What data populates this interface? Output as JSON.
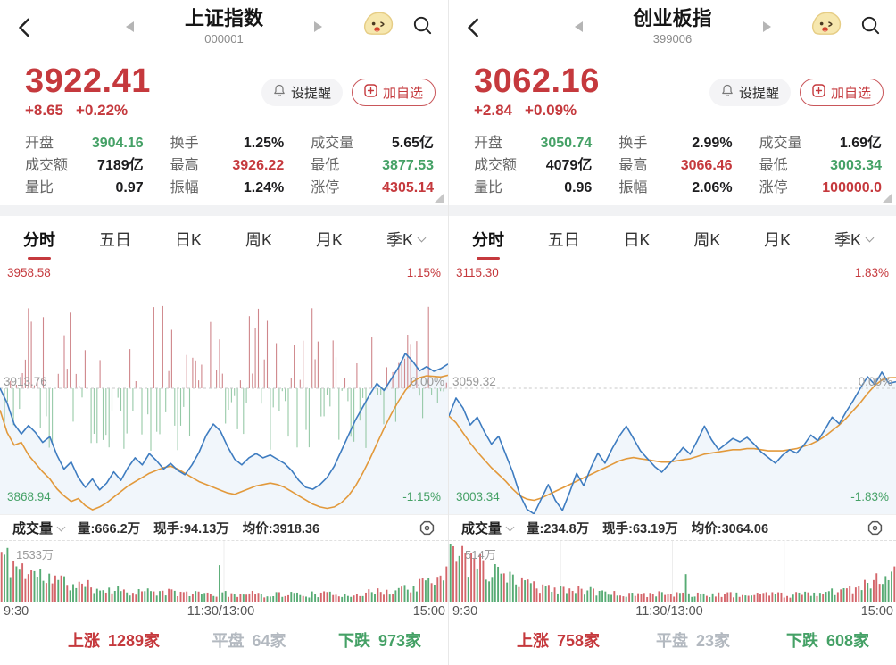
{
  "colors": {
    "red": "#c5393d",
    "green": "#45a166",
    "blue_line": "#3e7cc0",
    "orange_line": "#e2993b",
    "bar_red": "#cf868b",
    "bar_green": "#96c9a7",
    "vol_red": "#d4666b",
    "vol_green": "#57ab74",
    "gray_label": "#9a9a9a"
  },
  "tabs": [
    {
      "label": "分时",
      "active": true
    },
    {
      "label": "五日",
      "active": false
    },
    {
      "label": "日K",
      "active": false
    },
    {
      "label": "周K",
      "active": false
    },
    {
      "label": "月K",
      "active": false
    },
    {
      "label": "季K",
      "active": false,
      "caret": true
    }
  ],
  "panels": [
    {
      "header": {
        "title": "上证指数",
        "code": "000001"
      },
      "price": {
        "value": "3922.41",
        "change": "+8.65",
        "change_pct": "+0.22%"
      },
      "actions": {
        "alert_label": "设提醒",
        "watchlist_label": "加自选"
      },
      "stats": [
        {
          "label": "开盘",
          "value": "3904.16",
          "color": "green"
        },
        {
          "label": "换手",
          "value": "1.25%",
          "color": "dark"
        },
        {
          "label": "成交量",
          "value": "5.65亿",
          "color": "dark"
        },
        {
          "label": "成交额",
          "value": "7189亿",
          "color": "dark"
        },
        {
          "label": "最高",
          "value": "3926.22",
          "color": "red"
        },
        {
          "label": "最低",
          "value": "3877.53",
          "color": "green"
        },
        {
          "label": "量比",
          "value": "0.97",
          "color": "dark"
        },
        {
          "label": "振幅",
          "value": "1.24%",
          "color": "dark"
        },
        {
          "label": "涨停",
          "value": "4305.14",
          "color": "red"
        }
      ],
      "chart_labels": {
        "high": "3958.58",
        "high_pct": "1.15%",
        "mid": "3913.76",
        "mid_pct": "0.00%",
        "low": "3868.94",
        "low_pct": "-1.15%"
      },
      "volume_header": {
        "title": "成交量",
        "metrics": [
          "量:666.2万",
          "现手:94.13万",
          "均价:3918.36"
        ]
      },
      "volume_max_label": "1533万",
      "x_axis": [
        "9:30",
        "11:30/13:00",
        "15:00"
      ],
      "breadth": [
        {
          "label": "上涨",
          "value": "1289家",
          "color": "red"
        },
        {
          "label": "平盘",
          "value": "64家",
          "color": "gray"
        },
        {
          "label": "下跌",
          "value": "973家",
          "color": "green"
        }
      ]
    },
    {
      "header": {
        "title": "创业板指",
        "code": "399006"
      },
      "price": {
        "value": "3062.16",
        "change": "+2.84",
        "change_pct": "+0.09%"
      },
      "actions": {
        "alert_label": "设提醒",
        "watchlist_label": "加自选"
      },
      "stats": [
        {
          "label": "开盘",
          "value": "3050.74",
          "color": "green"
        },
        {
          "label": "换手",
          "value": "2.99%",
          "color": "dark"
        },
        {
          "label": "成交量",
          "value": "1.69亿",
          "color": "dark"
        },
        {
          "label": "成交额",
          "value": "4079亿",
          "color": "dark"
        },
        {
          "label": "最高",
          "value": "3066.46",
          "color": "red"
        },
        {
          "label": "最低",
          "value": "3003.34",
          "color": "green"
        },
        {
          "label": "量比",
          "value": "0.96",
          "color": "dark"
        },
        {
          "label": "振幅",
          "value": "2.06%",
          "color": "dark"
        },
        {
          "label": "涨停",
          "value": "100000.0",
          "color": "red"
        }
      ],
      "chart_labels": {
        "high": "3115.30",
        "high_pct": "1.83%",
        "mid": "3059.32",
        "mid_pct": "0.00%",
        "low": "3003.34",
        "low_pct": "-1.83%"
      },
      "volume_header": {
        "title": "成交量",
        "metrics": [
          "量:234.8万",
          "现手:63.19万",
          "均价:3064.06"
        ]
      },
      "volume_max_label": "514万",
      "x_axis": [
        "9:30",
        "11:30/13:00",
        "15:00"
      ],
      "breadth": [
        {
          "label": "上涨",
          "value": "758家",
          "color": "red"
        },
        {
          "label": "平盘",
          "value": "23家",
          "color": "gray"
        },
        {
          "label": "下跌",
          "value": "608家",
          "color": "green"
        }
      ]
    }
  ],
  "chart_data": [
    {
      "type": "line",
      "title": "上证指数 分时",
      "x_axis": [
        "9:30",
        "11:30/13:00",
        "15:00"
      ],
      "y_top": 3958.58,
      "y_bottom": 3868.94,
      "prev_close": 3913.76,
      "close": 3922.41,
      "day_high": 3926.22,
      "day_low": 3877.53,
      "series": [
        {
          "name": "price",
          "color_key": "blue_line",
          "values": [
            3913.8,
            3908.5,
            3901.0,
            3897.5,
            3900.5,
            3898.0,
            3894.5,
            3896.5,
            3890.0,
            3885.0,
            3887.5,
            3882.0,
            3878.5,
            3881.5,
            3877.6,
            3880.0,
            3884.0,
            3881.0,
            3885.5,
            3889.0,
            3886.5,
            3890.5,
            3888.0,
            3885.0,
            3887.0,
            3884.5,
            3883.0,
            3886.5,
            3891.0,
            3897.0,
            3901.0,
            3898.5,
            3893.0,
            3888.5,
            3886.5,
            3889.0,
            3890.5,
            3889.0,
            3890.0,
            3888.5,
            3887.0,
            3884.5,
            3881.0,
            3878.5,
            3877.8,
            3879.5,
            3882.0,
            3886.0,
            3891.5,
            3897.0,
            3902.5,
            3907.0,
            3911.5,
            3915.5,
            3913.0,
            3917.0,
            3921.0,
            3926.2,
            3923.5,
            3920.0,
            3921.5,
            3919.8,
            3920.8,
            3922.4
          ]
        },
        {
          "name": "avg",
          "color_key": "orange_line",
          "values": [
            3906.0,
            3898.0,
            3893.5,
            3894.5,
            3890.0,
            3887.0,
            3884.0,
            3881.5,
            3878.0,
            3875.5,
            3873.5,
            3874.5,
            3872.0,
            3870.5,
            3871.5,
            3873.0,
            3875.0,
            3877.0,
            3879.0,
            3880.5,
            3882.0,
            3883.5,
            3884.5,
            3885.5,
            3886.0,
            3885.0,
            3883.5,
            3882.0,
            3880.5,
            3879.5,
            3878.5,
            3877.5,
            3876.5,
            3876.0,
            3877.0,
            3878.0,
            3879.0,
            3879.5,
            3880.0,
            3879.5,
            3878.5,
            3877.0,
            3875.5,
            3874.0,
            3872.5,
            3871.5,
            3871.0,
            3871.5,
            3873.0,
            3875.5,
            3879.0,
            3883.5,
            3888.5,
            3894.0,
            3899.5,
            3904.5,
            3909.0,
            3913.0,
            3916.0,
            3917.5,
            3918.2,
            3918.0,
            3917.8,
            3918.4
          ]
        }
      ],
      "updown_bars": {
        "count": 150,
        "seed": 7,
        "max_up": 0.33,
        "max_down": 0.25
      },
      "volume": {
        "count": 150,
        "seed": 11,
        "start": 0.82,
        "floor": 0.13,
        "mid_spike_t": 0.49,
        "end_rise": 0.3,
        "max_label": "1533万"
      }
    },
    {
      "type": "line",
      "title": "创业板指 分时",
      "x_axis": [
        "9:30",
        "11:30/13:00",
        "15:00"
      ],
      "y_top": 3115.3,
      "y_bottom": 3003.34,
      "prev_close": 3059.32,
      "close": 3062.16,
      "day_high": 3066.46,
      "day_low": 3003.34,
      "series": [
        {
          "name": "price",
          "color_key": "blue_line",
          "values": [
            3047.0,
            3055.0,
            3050.5,
            3043.0,
            3046.5,
            3040.0,
            3034.5,
            3038.0,
            3030.0,
            3022.0,
            3012.0,
            3005.5,
            3003.4,
            3010.0,
            3016.5,
            3009.5,
            3005.0,
            3013.0,
            3021.5,
            3016.0,
            3024.0,
            3030.5,
            3026.0,
            3032.5,
            3038.0,
            3042.5,
            3037.0,
            3031.5,
            3028.0,
            3024.5,
            3022.0,
            3025.5,
            3029.0,
            3033.0,
            3030.0,
            3036.0,
            3042.5,
            3036.5,
            3032.0,
            3034.5,
            3037.0,
            3035.5,
            3037.5,
            3034.5,
            3031.0,
            3028.5,
            3026.0,
            3029.5,
            3032.0,
            3030.5,
            3034.0,
            3038.5,
            3036.0,
            3041.0,
            3046.5,
            3043.5,
            3049.0,
            3054.0,
            3059.5,
            3064.5,
            3061.0,
            3066.5,
            3061.5,
            3062.2
          ]
        },
        {
          "name": "avg",
          "color_key": "orange_line",
          "values": [
            3047.0,
            3044.0,
            3039.5,
            3035.0,
            3031.0,
            3027.5,
            3024.0,
            3021.0,
            3018.0,
            3014.5,
            3011.5,
            3010.0,
            3009.5,
            3010.5,
            3012.0,
            3013.5,
            3015.0,
            3016.5,
            3018.0,
            3019.5,
            3021.0,
            3022.5,
            3024.0,
            3025.5,
            3027.0,
            3028.0,
            3028.5,
            3028.0,
            3027.5,
            3027.0,
            3026.5,
            3026.5,
            3027.0,
            3027.5,
            3028.0,
            3029.0,
            3030.0,
            3030.5,
            3031.0,
            3031.5,
            3032.0,
            3032.0,
            3032.5,
            3032.5,
            3032.0,
            3031.5,
            3031.5,
            3031.5,
            3032.0,
            3032.5,
            3033.5,
            3034.5,
            3036.0,
            3038.0,
            3040.5,
            3043.0,
            3046.0,
            3049.5,
            3053.0,
            3057.0,
            3060.5,
            3063.0,
            3064.0,
            3064.1
          ]
        }
      ],
      "updown_bars": null,
      "volume": {
        "count": 150,
        "seed": 23,
        "start": 0.95,
        "floor": 0.12,
        "mid_spike_t": 0.53,
        "end_rise": 0.38,
        "max_label": "514万"
      }
    }
  ]
}
